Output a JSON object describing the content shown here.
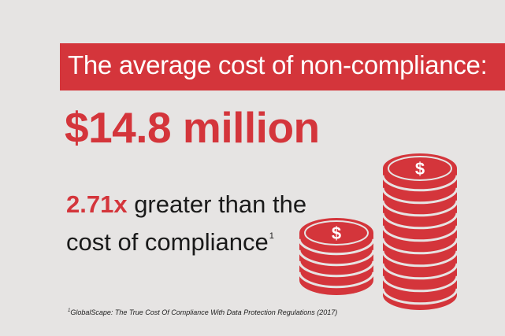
{
  "banner": {
    "text": "The average cost of non-compliance:"
  },
  "headline": {
    "text": "$14.8 million"
  },
  "comparison": {
    "multiplier": "2.71x",
    "line1_rest": " greater than the",
    "line2": "cost of compliance",
    "footnote_ref": "1"
  },
  "footnote": {
    "marker": "1",
    "text": "GlobalScape: The True Cost Of Compliance With Data Protection Regulations (2017)"
  },
  "coin_symbol": "$",
  "colors": {
    "accent": "#d4353b",
    "background": "#e6e4e3",
    "text": "#1a1a1a"
  },
  "icons": {
    "small_stack": "coin-stack-icon",
    "large_stack": "coin-stack-icon"
  }
}
